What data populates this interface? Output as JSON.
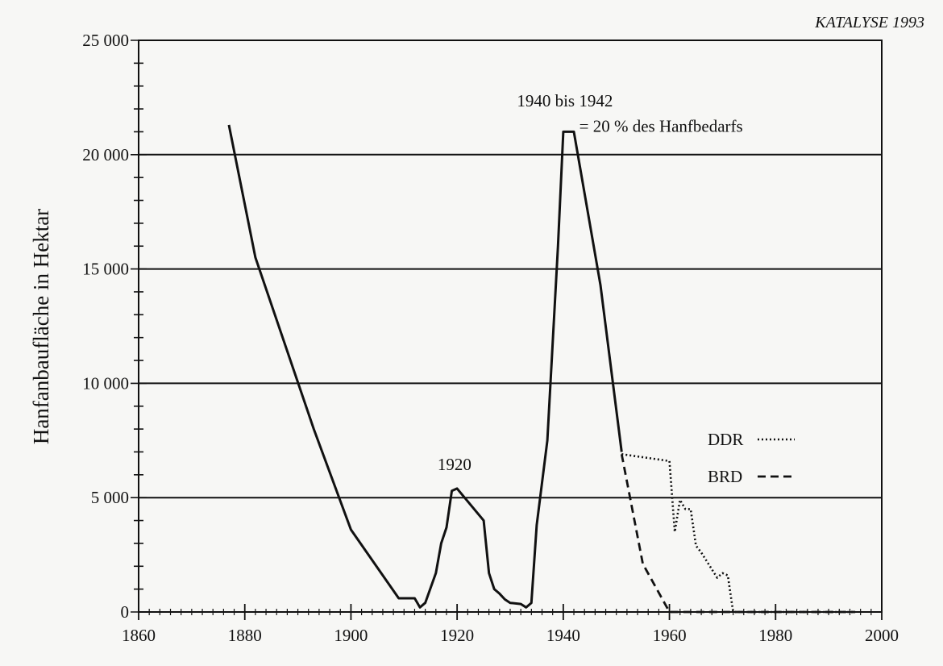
{
  "source": "KATALYSE 1993",
  "chart_data": {
    "type": "line",
    "title": "",
    "xlabel": "",
    "ylabel": "Hanfanbaufläche in Hektar",
    "xlim": [
      1860,
      2000
    ],
    "ylim": [
      0,
      25000
    ],
    "x_ticks": [
      "1860",
      "1880",
      "1900",
      "1920",
      "1940",
      "1960",
      "1980",
      "2000"
    ],
    "y_ticks": [
      "0",
      "5 000",
      "10 000",
      "15 000",
      "20 000",
      "25 000"
    ],
    "grid": "horizontal",
    "legend_placement": "right",
    "series": [
      {
        "name": "",
        "style": "solid",
        "points": [
          [
            1877,
            21300
          ],
          [
            1882,
            15500
          ],
          [
            1893,
            8000
          ],
          [
            1900,
            3600
          ],
          [
            1909,
            600
          ],
          [
            1912,
            600
          ],
          [
            1913,
            200
          ],
          [
            1914,
            400
          ],
          [
            1916,
            1700
          ],
          [
            1917,
            3000
          ],
          [
            1918,
            3700
          ],
          [
            1919,
            5300
          ],
          [
            1920,
            5400
          ],
          [
            1925,
            4000
          ],
          [
            1926,
            1700
          ],
          [
            1927,
            1000
          ],
          [
            1928,
            800
          ],
          [
            1929,
            550
          ],
          [
            1930,
            400
          ],
          [
            1932,
            350
          ],
          [
            1933,
            200
          ],
          [
            1934,
            400
          ],
          [
            1935,
            3800
          ],
          [
            1937,
            7500
          ],
          [
            1939,
            16000
          ],
          [
            1940,
            21000
          ],
          [
            1942,
            21000
          ],
          [
            1947,
            14300
          ],
          [
            1951,
            7000
          ]
        ]
      },
      {
        "name": "DDR",
        "style": "dotted",
        "points": [
          [
            1951,
            6900
          ],
          [
            1960,
            6600
          ],
          [
            1961,
            3500
          ],
          [
            1962,
            4900
          ],
          [
            1963,
            4500
          ],
          [
            1964,
            4500
          ],
          [
            1965,
            2900
          ],
          [
            1966,
            2600
          ],
          [
            1969,
            1500
          ],
          [
            1970,
            1700
          ],
          [
            1971,
            1600
          ],
          [
            1972,
            0
          ],
          [
            1995,
            0
          ]
        ]
      },
      {
        "name": "BRD",
        "style": "dashed",
        "points": [
          [
            1951,
            6900
          ],
          [
            1955,
            2100
          ],
          [
            1960,
            0
          ],
          [
            1995,
            0
          ]
        ]
      }
    ],
    "annotations": [
      {
        "text": "1920",
        "x": 1919.5,
        "y": 6200,
        "anchor": "middle"
      },
      {
        "text": "1940 bis 1942",
        "x": 1940.3,
        "y": 22100,
        "anchor": "middle"
      },
      {
        "text": "= 20 % des Hanfbedarfs",
        "x": 1943,
        "y": 21000,
        "anchor": "start"
      }
    ]
  }
}
